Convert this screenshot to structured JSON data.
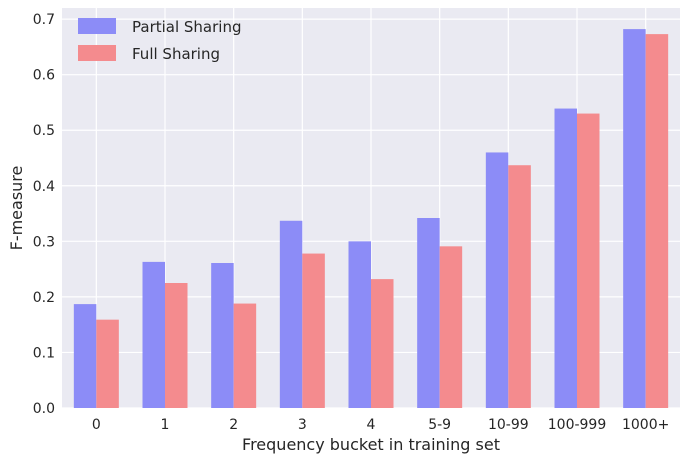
{
  "chart_data": {
    "type": "bar",
    "title": "",
    "xlabel": "Frequency bucket in training set",
    "ylabel": "F-measure",
    "categories": [
      "0",
      "1",
      "2",
      "3",
      "4",
      "5-9",
      "10-99",
      "100-999",
      "1000+"
    ],
    "ylim": [
      0,
      0.72
    ],
    "yticks": [
      "0.0",
      "0.1",
      "0.2",
      "0.3",
      "0.4",
      "0.5",
      "0.6",
      "0.7"
    ],
    "grid": true,
    "legend_position": "top-left",
    "series": [
      {
        "name": "Partial Sharing",
        "color": "#8c8cf7",
        "values": [
          0.187,
          0.263,
          0.261,
          0.337,
          0.3,
          0.342,
          0.46,
          0.539,
          0.682
        ]
      },
      {
        "name": "Full Sharing",
        "color": "#f48b8e",
        "values": [
          0.159,
          0.225,
          0.188,
          0.278,
          0.232,
          0.291,
          0.437,
          0.53,
          0.673
        ]
      }
    ],
    "plot_background": "#eaeaf2",
    "grid_color": "#ffffff"
  }
}
